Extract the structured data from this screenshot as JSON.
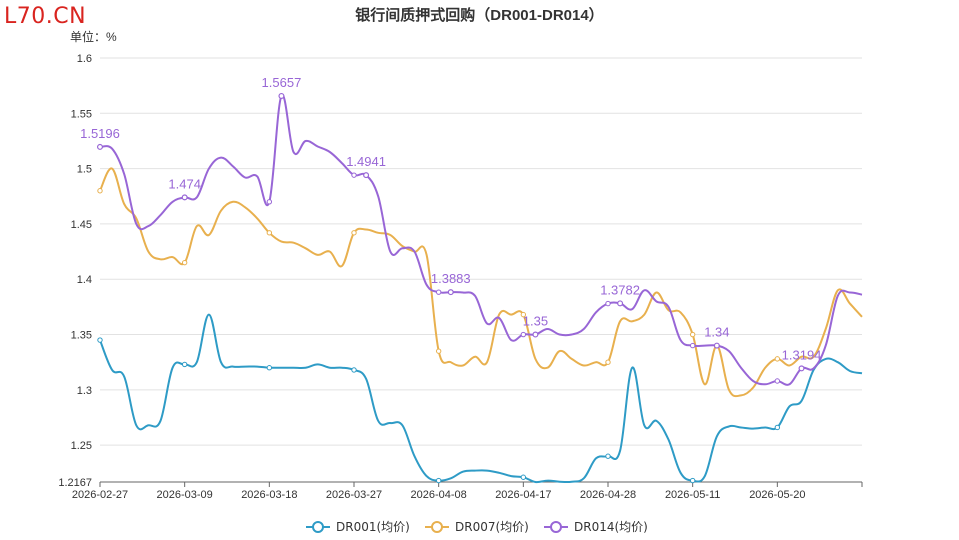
{
  "logo": "L70.CN",
  "chart_data": {
    "type": "line",
    "title": "银行间质押式回购（DR001-DR014）",
    "unit_label": "单位：%",
    "y_ticks": [
      "1.2167",
      "1.25",
      "1.3",
      "1.35",
      "1.4",
      "1.45",
      "1.5",
      "1.55",
      "1.6"
    ],
    "ylim": [
      1.2167,
      1.6
    ],
    "x_ticks": [
      "2026-02-27",
      "2026-03-09",
      "2026-03-18",
      "2026-03-27",
      "2026-04-08",
      "2026-04-17",
      "2026-04-28",
      "2026-05-11",
      "2026-05-20"
    ],
    "x_tick_index": [
      0,
      7,
      14,
      21,
      28,
      35,
      42,
      49,
      56
    ],
    "legend_position": "bottom-center",
    "grid": true,
    "series": [
      {
        "name": "DR001(均价)",
        "color": "#2e9bc6",
        "values": [
          1.345,
          1.318,
          1.312,
          1.268,
          1.268,
          1.272,
          1.32,
          1.323,
          1.325,
          1.368,
          1.325,
          1.321,
          1.321,
          1.321,
          1.32,
          1.32,
          1.32,
          1.32,
          1.323,
          1.32,
          1.32,
          1.318,
          1.31,
          1.272,
          1.27,
          1.268,
          1.24,
          1.222,
          1.218,
          1.22,
          1.226,
          1.227,
          1.227,
          1.225,
          1.222,
          1.221,
          1.216,
          1.218,
          1.217,
          1.217,
          1.22,
          1.238,
          1.24,
          1.245,
          1.32,
          1.268,
          1.272,
          1.255,
          1.225,
          1.218,
          1.222,
          1.258,
          1.267,
          1.266,
          1.265,
          1.266,
          1.266,
          1.285,
          1.29,
          1.318,
          1.328,
          1.325,
          1.317,
          1.315
        ]
      },
      {
        "name": "DR007(均价)",
        "color": "#e8b04e",
        "values": [
          1.48,
          1.5,
          1.468,
          1.455,
          1.425,
          1.418,
          1.42,
          1.415,
          1.448,
          1.44,
          1.462,
          1.47,
          1.465,
          1.455,
          1.442,
          1.434,
          1.433,
          1.428,
          1.422,
          1.425,
          1.412,
          1.442,
          1.445,
          1.442,
          1.44,
          1.43,
          1.425,
          1.422,
          1.335,
          1.325,
          1.322,
          1.33,
          1.325,
          1.368,
          1.368,
          1.368,
          1.328,
          1.32,
          1.335,
          1.328,
          1.322,
          1.325,
          1.325,
          1.362,
          1.362,
          1.368,
          1.388,
          1.372,
          1.37,
          1.35,
          1.305,
          1.34,
          1.3,
          1.295,
          1.302,
          1.32,
          1.328,
          1.322,
          1.33,
          1.33,
          1.355,
          1.39,
          1.378,
          1.366
        ]
      },
      {
        "name": "DR014(均价)",
        "color": "#9866d6",
        "values": [
          1.5196,
          1.518,
          1.495,
          1.45,
          1.448,
          1.458,
          1.47,
          1.474,
          1.474,
          1.5,
          1.51,
          1.502,
          1.492,
          1.493,
          1.47,
          1.5657,
          1.515,
          1.525,
          1.52,
          1.515,
          1.505,
          1.4941,
          1.4941,
          1.475,
          1.425,
          1.428,
          1.425,
          1.395,
          1.3883,
          1.3883,
          1.388,
          1.385,
          1.36,
          1.365,
          1.345,
          1.35,
          1.35,
          1.355,
          1.35,
          1.35,
          1.355,
          1.37,
          1.378,
          1.3782,
          1.373,
          1.39,
          1.38,
          1.375,
          1.345,
          1.34,
          1.34,
          1.34,
          1.335,
          1.32,
          1.308,
          1.305,
          1.308,
          1.305,
          1.3194,
          1.3194,
          1.34,
          1.385,
          1.388,
          1.386
        ]
      }
    ],
    "data_labels": [
      {
        "series": 2,
        "index": 0,
        "text": "1.5196"
      },
      {
        "series": 2,
        "index": 7,
        "text": "1.474"
      },
      {
        "series": 2,
        "index": 15,
        "text": "1.5657"
      },
      {
        "series": 2,
        "index": 22,
        "text": "1.4941"
      },
      {
        "series": 2,
        "index": 29,
        "text": "1.3883"
      },
      {
        "series": 2,
        "index": 36,
        "text": "1.35"
      },
      {
        "series": 2,
        "index": 43,
        "text": "1.3782"
      },
      {
        "series": 2,
        "index": 51,
        "text": "1.34"
      },
      {
        "series": 2,
        "index": 58,
        "text": "1.3194"
      }
    ]
  }
}
